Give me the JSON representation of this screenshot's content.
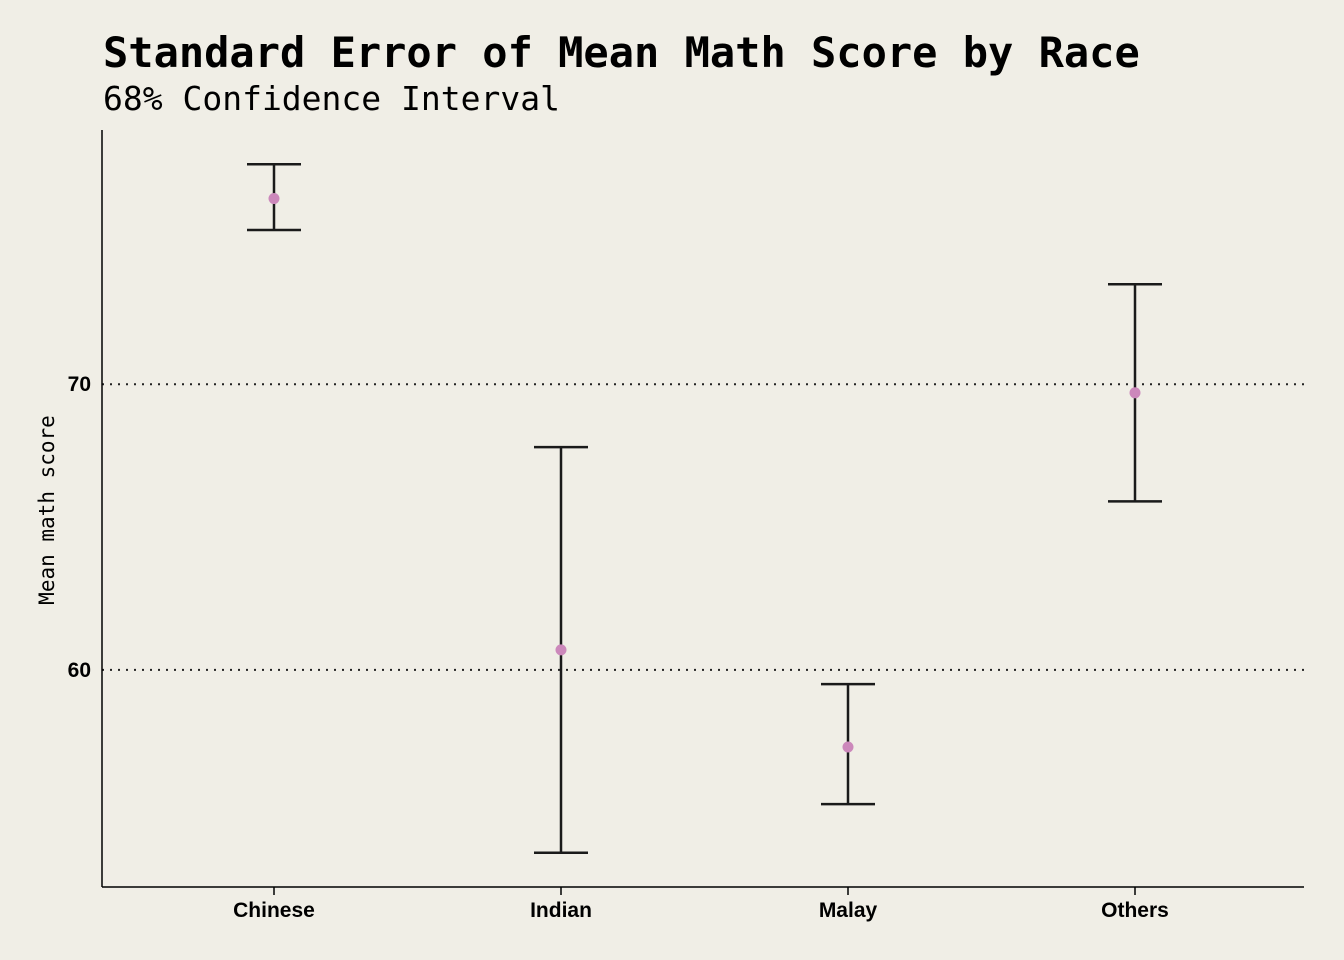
{
  "chart_data": {
    "type": "errorbar",
    "title": "Standard Error of Mean Math Score by Race",
    "subtitle": "68% Confidence Interval",
    "xlabel": "",
    "ylabel": "Mean math score",
    "categories": [
      "Chinese",
      "Indian",
      "Malay",
      "Others"
    ],
    "series": [
      {
        "means": [
          76.5,
          60.7,
          57.3,
          69.7
        ],
        "lower": [
          75.4,
          53.6,
          55.3,
          65.9
        ],
        "upper": [
          77.7,
          67.8,
          59.5,
          73.5
        ]
      }
    ],
    "yticks": [
      60,
      70
    ],
    "ylim": [
      52.4,
      78.9
    ],
    "grid": "horizontal-dotted",
    "legend": "none",
    "colors": {
      "background": "#f0eee6",
      "point": "#cc88bb",
      "errorbar": "#1a1a1a"
    }
  }
}
